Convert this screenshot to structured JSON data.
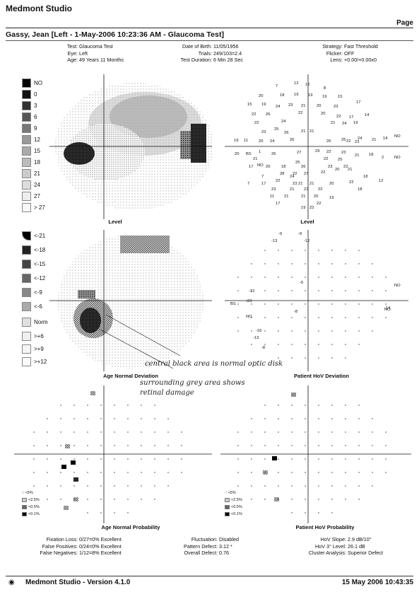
{
  "header": {
    "app_title": "Medmont Studio",
    "page_label": "Page",
    "patient_line": "Gassy, Jean [Left - 1-May-2006 10:23:36 AM - Glaucoma Test]"
  },
  "info": {
    "test_label": "Test:",
    "test_value": "Glaucoma Test",
    "eye_label": "Eye:",
    "eye_value": "Left",
    "age_label": "Age:",
    "age_value": "49 Years 11 Months",
    "dob_label": "Date of Birth:",
    "dob_value": "11/05/1956",
    "trials_label": "Trials:",
    "trials_value": "249/103=2.4",
    "duration_label": "Test Duration:",
    "duration_value": "6 Min 28 Sec",
    "strategy_label": "Strategy:",
    "strategy_value": "Fast Threshold",
    "flicker_label": "Flicker:",
    "flicker_value": "OFF",
    "lens_label": "Lens:",
    "lens_value": "+0.00/+0.00x0"
  },
  "level_legend": [
    "NO",
    "0",
    "3",
    "6",
    "9",
    "12",
    "15",
    "18",
    "21",
    "24",
    "27",
    "> 27"
  ],
  "deviation_legend": [
    "<-21",
    "<-18",
    "<-15",
    "<-12",
    "<-9",
    "<-6",
    "Norm",
    ">+6",
    ">+9",
    ">+12"
  ],
  "probability_legend": [
    ":: <5%",
    "<2.5%",
    "<0.5%",
    "<0.1%"
  ],
  "plot_titles": {
    "level_gray": "Level",
    "level_numeric": "Level",
    "age_normal_deviation": "Age Normal Deviation",
    "patient_hov_deviation": "Patient HoV Deviation",
    "age_normal_probability": "Age Normal Probability",
    "patient_hov_probability": "Patient HoV Probability"
  },
  "level_values": [
    {
      "t": "7"
    },
    {
      "t": "12"
    },
    {
      "t": "12"
    },
    {
      "t": "8"
    },
    {
      "t": "20"
    },
    {
      "t": "18"
    },
    {
      "t": "19"
    },
    {
      "t": "19"
    },
    {
      "t": "19"
    },
    {
      "t": "15"
    },
    {
      "t": "17"
    },
    {
      "t": "15"
    },
    {
      "t": "19"
    },
    {
      "t": "24"
    },
    {
      "t": "23"
    },
    {
      "t": "21"
    },
    {
      "t": "20"
    },
    {
      "t": "23"
    },
    {
      "t": "22"
    },
    {
      "t": "26"
    },
    {
      "t": "22"
    },
    {
      "t": "20"
    },
    {
      "t": "22"
    },
    {
      "t": "17"
    },
    {
      "t": "14"
    },
    {
      "t": "22"
    },
    {
      "t": "24"
    },
    {
      "t": "21"
    },
    {
      "t": "24"
    },
    {
      "t": "19"
    },
    {
      "t": "23"
    },
    {
      "t": "25"
    },
    {
      "t": "26"
    },
    {
      "t": "21"
    },
    {
      "t": "21"
    },
    {
      "t": "19"
    },
    {
      "t": "11"
    },
    {
      "t": "20"
    },
    {
      "t": "24"
    },
    {
      "t": "26"
    },
    {
      "t": "26"
    },
    {
      "t": "25"
    },
    {
      "t": "23"
    },
    {
      "t": "22"
    },
    {
      "t": "24"
    },
    {
      "t": "21"
    },
    {
      "t": "14"
    },
    {
      "t": "NO"
    },
    {
      "t": "20"
    },
    {
      "t": "BS"
    },
    {
      "t": "1"
    },
    {
      "t": "26"
    },
    {
      "t": "27"
    },
    {
      "t": "29"
    },
    {
      "t": "22"
    },
    {
      "t": "23"
    },
    {
      "t": "21"
    },
    {
      "t": "18"
    },
    {
      "t": "2"
    },
    {
      "t": "NO"
    },
    {
      "t": "21"
    },
    {
      "t": "25"
    },
    {
      "t": "22"
    },
    {
      "t": "25"
    },
    {
      "t": "17"
    },
    {
      "t": "NO"
    },
    {
      "t": "20"
    },
    {
      "t": "18"
    },
    {
      "t": "26"
    },
    {
      "t": "23"
    },
    {
      "t": "22"
    },
    {
      "t": "28"
    },
    {
      "t": "27"
    },
    {
      "t": "22"
    },
    {
      "t": "20"
    },
    {
      "t": "21"
    },
    {
      "t": "7"
    },
    {
      "t": "24"
    },
    {
      "t": "22"
    },
    {
      "t": "18"
    },
    {
      "t": "7"
    },
    {
      "t": "17"
    },
    {
      "t": "22"
    },
    {
      "t": "23"
    },
    {
      "t": "21"
    },
    {
      "t": "21"
    },
    {
      "t": "20"
    },
    {
      "t": "22"
    },
    {
      "t": "12"
    },
    {
      "t": "23"
    },
    {
      "t": "21"
    },
    {
      "t": "23"
    },
    {
      "t": "22"
    },
    {
      "t": "18"
    },
    {
      "t": "11"
    },
    {
      "t": "21"
    },
    {
      "t": "21"
    },
    {
      "t": "20"
    },
    {
      "t": "19"
    },
    {
      "t": "17"
    },
    {
      "t": "19"
    },
    {
      "t": "22"
    },
    {
      "t": "22"
    }
  ],
  "hov_values": [
    {
      "t": "-9"
    },
    {
      "t": "-9"
    },
    {
      "t": "-13"
    },
    {
      "t": "-12"
    },
    {
      "t": "-5"
    },
    {
      "t": "-12"
    },
    {
      "t": "NO"
    },
    {
      "t": "BS"
    },
    {
      "t": "-23"
    },
    {
      "t": "-14"
    },
    {
      "t": "NO"
    },
    {
      "t": "-8"
    },
    {
      "t": "NO"
    },
    {
      "t": "-16"
    },
    {
      "t": "-13"
    },
    {
      "t": "-8"
    }
  ],
  "annotations": {
    "note1": "central black area is normal optic disk",
    "note2_line1": "surrounding grey area shows",
    "note2_line2": "retinal damage"
  },
  "stats_left": {
    "fixation_label": "Fixation Loss:",
    "fixation_value": "0/27=0% Excellent",
    "fp_label": "False Positives:",
    "fp_value": "0/24=0% Excellent",
    "fn_label": "False Negatives:",
    "fn_value": "1/12=8% Excellent"
  },
  "stats_mid": {
    "fluct_label": "Fluctuation:",
    "fluct_value": "Disabled",
    "pattern_label": "Pattern Defect:",
    "pattern_value": "3.12 *",
    "overall_label": "Overall Defect:",
    "overall_value": "0.76"
  },
  "stats_right": {
    "slope_label": "HoV Slope:",
    "slope_value": "2.9 dB/10°",
    "level_label": "HoV 3° Level:",
    "level_value": "26.1 dB",
    "cluster_label": "Cluster Analysis:",
    "cluster_value": "Superior Defect"
  },
  "footer": {
    "left": "Medmont Studio - Version 4.1.0",
    "right": "15 May 2006 10:43:35"
  },
  "colors": {
    "ink": "#111111",
    "gray": "#888888",
    "dark": "#222222"
  }
}
